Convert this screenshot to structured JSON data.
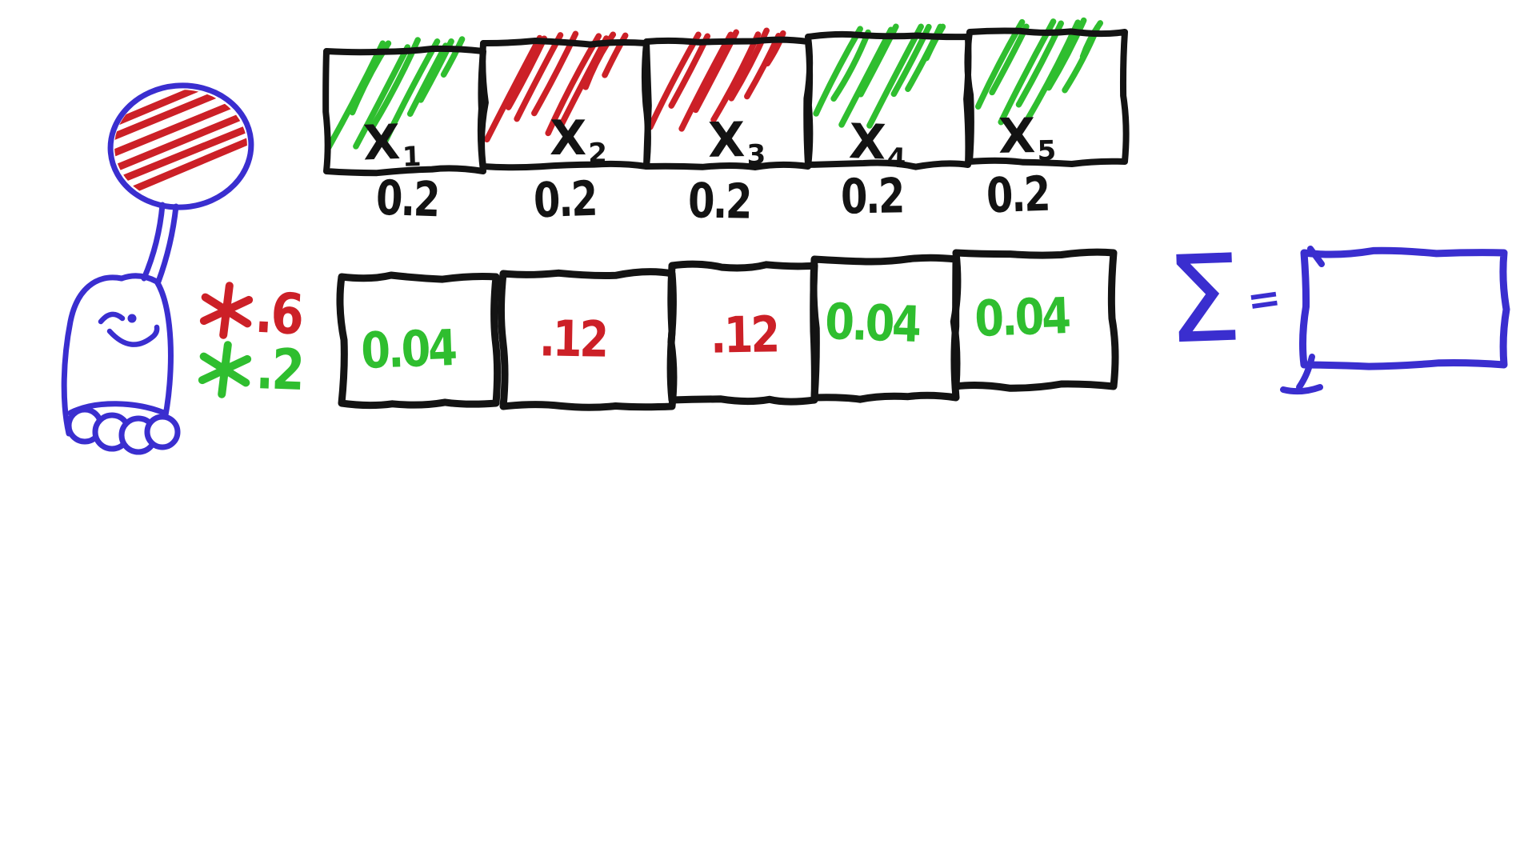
{
  "colors": {
    "background": "#ffffff",
    "ink_black": "#131313",
    "marker_blue": "#3a2ecf",
    "marker_red": "#cc2027",
    "marker_green": "#2fbe2f"
  },
  "figure": {
    "description": "doodle creature holding a hatched balloon",
    "balloon_hatch_color": "red",
    "body_color": "blue"
  },
  "top_row": {
    "boxes": [
      {
        "name": "X",
        "subscript": "1",
        "hatch_color": "green",
        "probability": "0.2"
      },
      {
        "name": "X",
        "subscript": "2",
        "hatch_color": "red",
        "probability": "0.2"
      },
      {
        "name": "X",
        "subscript": "3",
        "hatch_color": "red",
        "probability": "0.2"
      },
      {
        "name": "X",
        "subscript": "4",
        "hatch_color": "green",
        "probability": "0.2"
      },
      {
        "name": "X",
        "subscript": "5",
        "hatch_color": "green",
        "probability": "0.2"
      }
    ]
  },
  "multipliers": [
    {
      "icon": "asterisk-star",
      "color": "red",
      "value": ".6"
    },
    {
      "icon": "asterisk-star",
      "color": "green",
      "value": ".2"
    }
  ],
  "bottom_row": {
    "boxes": [
      {
        "value": "0.04",
        "color": "green"
      },
      {
        "value": ".12",
        "color": "red"
      },
      {
        "value": ".12",
        "color": "red"
      },
      {
        "value": "0.04",
        "color": "green"
      },
      {
        "value": "0.04",
        "color": "green"
      }
    ]
  },
  "summation": {
    "symbol": "Σ",
    "equals": "=",
    "result_box_value": ""
  }
}
